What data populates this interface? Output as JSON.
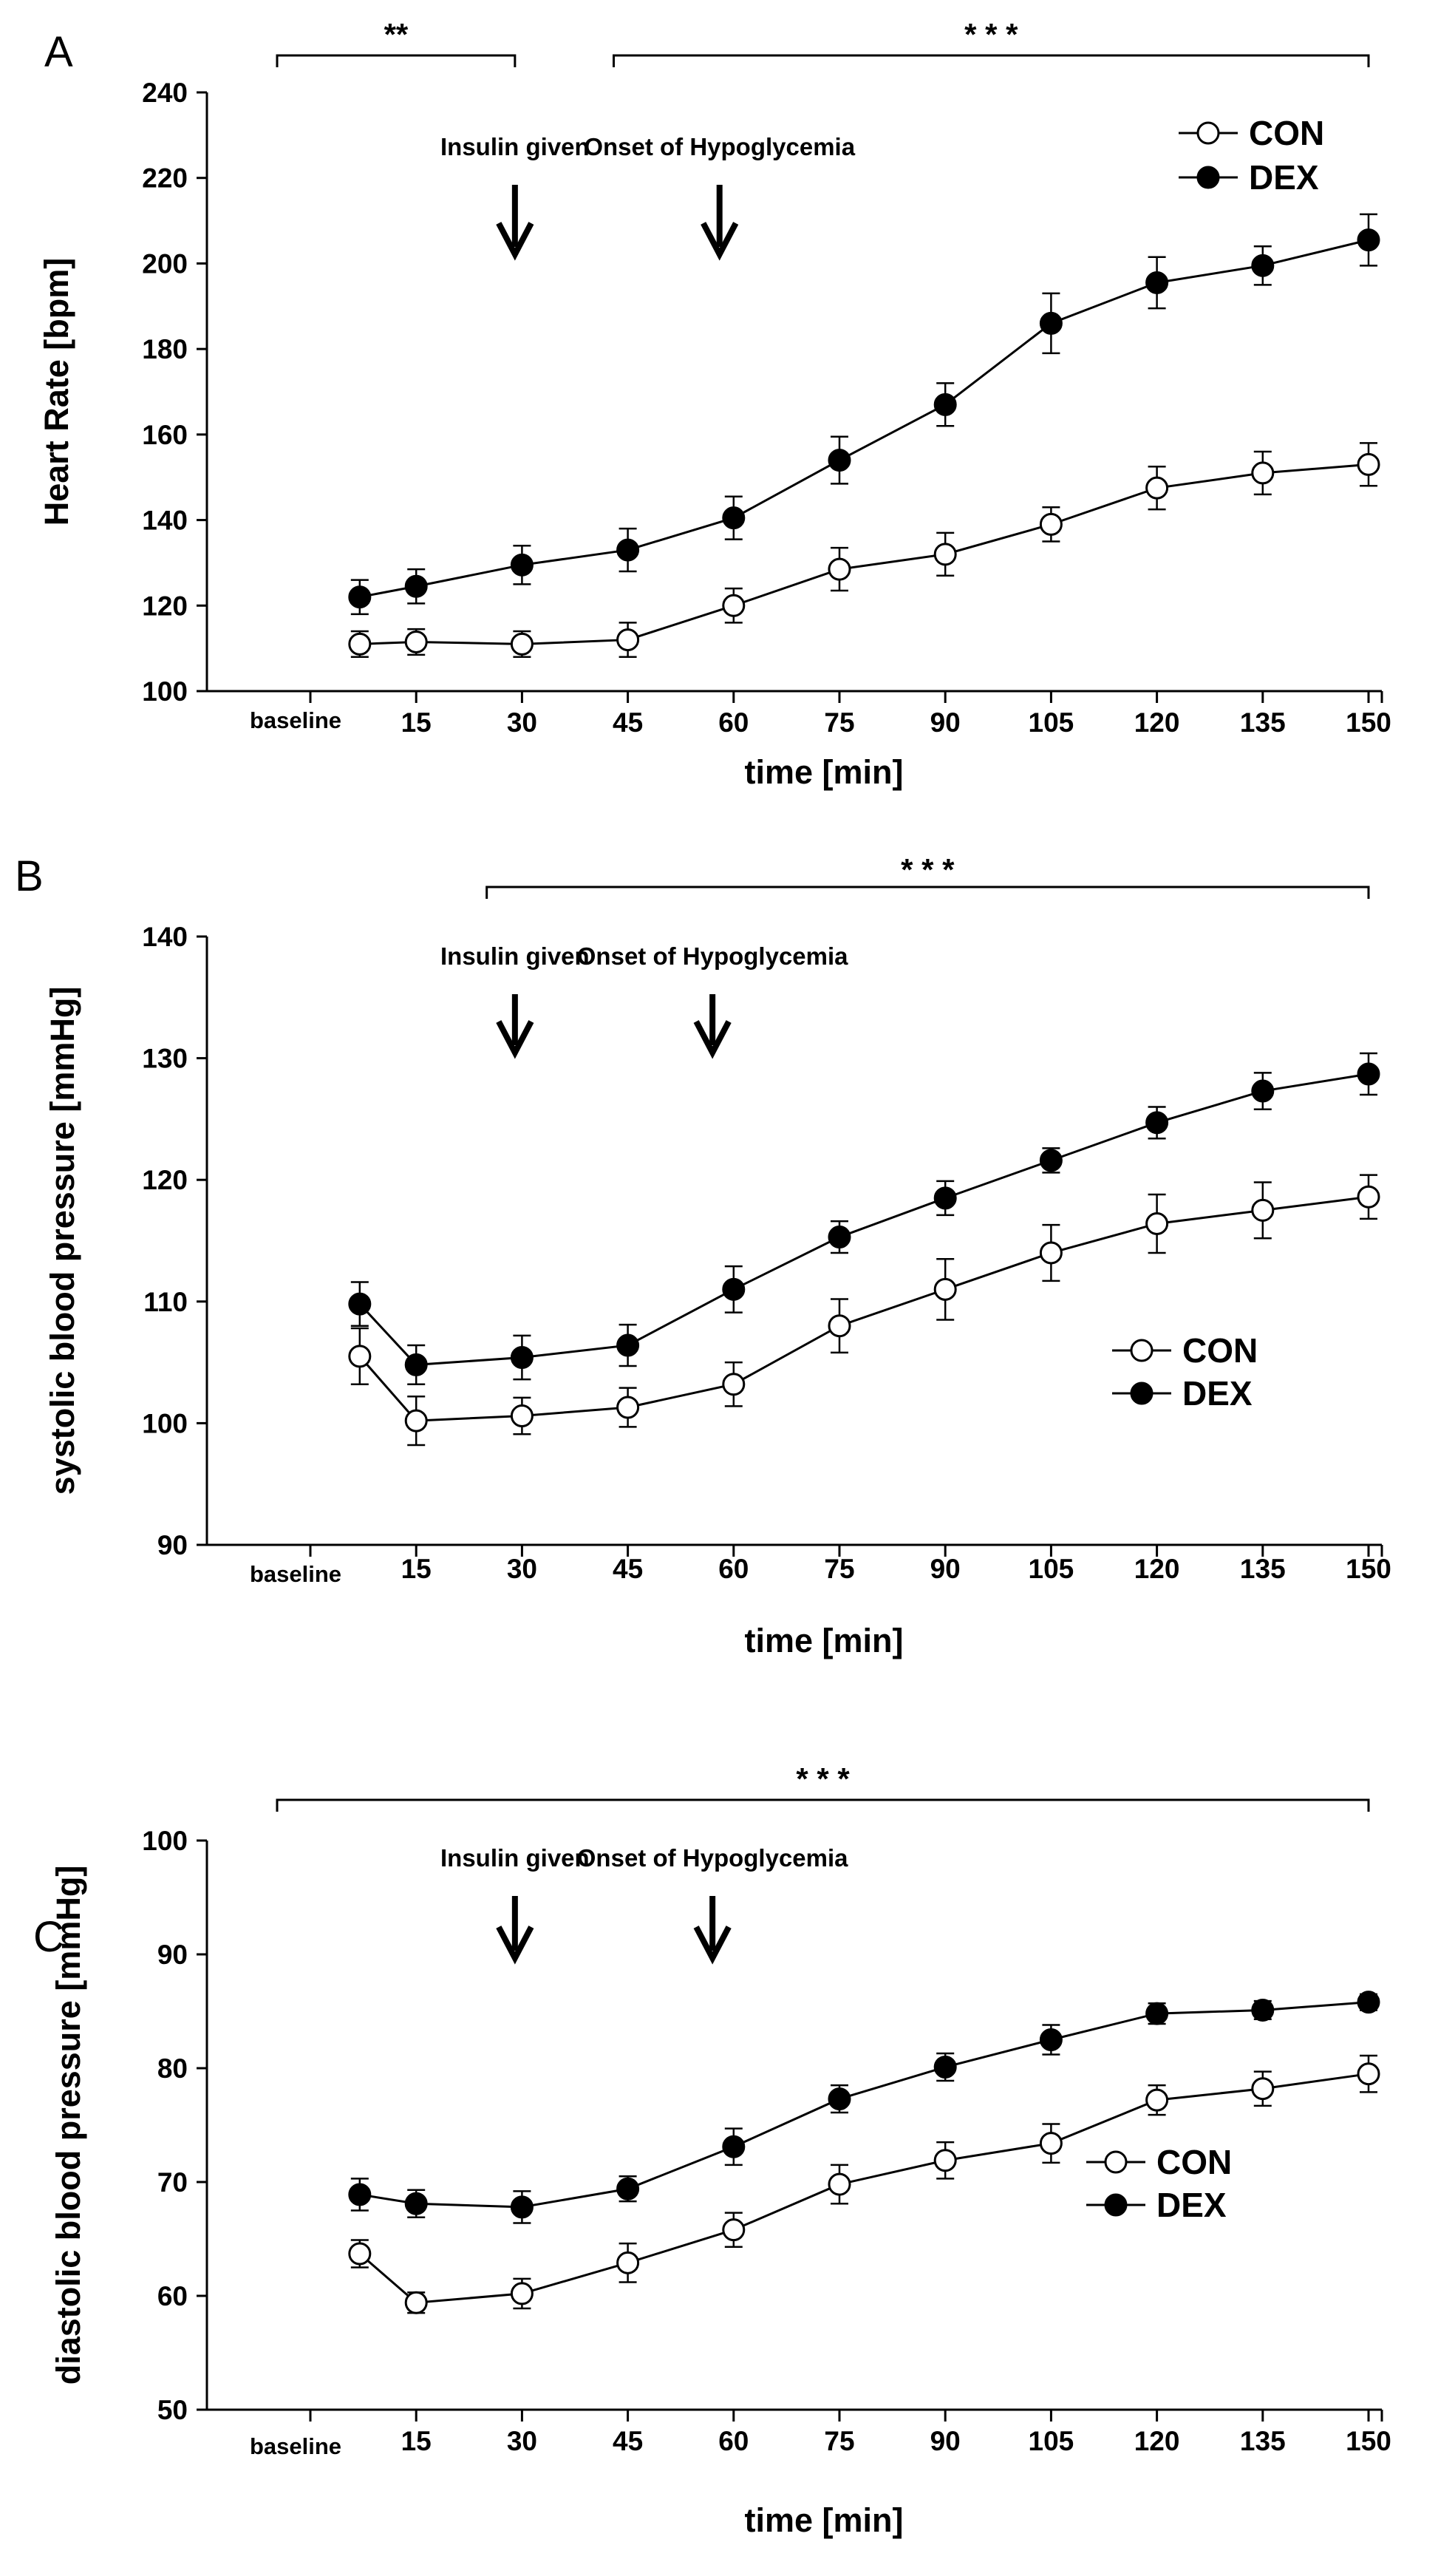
{
  "chart_data": [
    {
      "type": "line",
      "panel": "A",
      "xlabel": "time [min]",
      "ylabel": "Heart Rate [bpm]",
      "ylim": [
        100,
        240
      ],
      "yticks": [
        100,
        120,
        140,
        160,
        180,
        200,
        220,
        240
      ],
      "baseline_label": "baseline",
      "xticks": [
        "15",
        "30",
        "45",
        "60",
        "75",
        "90",
        "105",
        "120",
        "135",
        "150"
      ],
      "x": [
        7,
        15,
        30,
        45,
        60,
        75,
        90,
        105,
        120,
        135,
        150
      ],
      "series": [
        {
          "name": "CON",
          "marker": "open-circle",
          "values": [
            111,
            111.5,
            111,
            112,
            120,
            128.5,
            132,
            139,
            147.5,
            151,
            153
          ],
          "errors": [
            3,
            3,
            3,
            4,
            4,
            5,
            5,
            4,
            5,
            5,
            5
          ]
        },
        {
          "name": "DEX",
          "marker": "filled-circle",
          "values": [
            122,
            124.5,
            129.5,
            133,
            140.5,
            154,
            167,
            186,
            195.5,
            199.5,
            205.5
          ],
          "errors": [
            4,
            4,
            4.5,
            5,
            5,
            5.5,
            5,
            7,
            6,
            4.5,
            6
          ]
        }
      ],
      "legend_position": "top-right",
      "annotations": [
        {
          "text": "Insulin given",
          "x": 29
        },
        {
          "text": "Onset of Hypoglycemia",
          "x": 58
        }
      ],
      "significance": [
        {
          "label": "**",
          "from": 0,
          "to": 29
        },
        {
          "label": "* * *",
          "from": 43,
          "to": 150
        }
      ]
    },
    {
      "type": "line",
      "panel": "B",
      "xlabel": "time [min]",
      "ylabel": "systolic blood pressure  [mmHg]",
      "ylim": [
        90,
        140
      ],
      "yticks": [
        90,
        100,
        110,
        120,
        130,
        140
      ],
      "baseline_label": "baseline",
      "xticks": [
        "15",
        "30",
        "45",
        "60",
        "75",
        "90",
        "105",
        "120",
        "135",
        "150"
      ],
      "x": [
        7,
        15,
        30,
        45,
        60,
        75,
        90,
        105,
        120,
        135,
        150
      ],
      "series": [
        {
          "name": "CON",
          "marker": "open-circle",
          "values": [
            105.5,
            100.2,
            100.6,
            101.3,
            103.2,
            108,
            111,
            114,
            116.4,
            117.5,
            118.6
          ],
          "errors": [
            2.3,
            2,
            1.5,
            1.6,
            1.8,
            2.2,
            2.5,
            2.3,
            2.4,
            2.3,
            1.8
          ]
        },
        {
          "name": "DEX",
          "marker": "filled-circle",
          "values": [
            109.8,
            104.8,
            105.4,
            106.4,
            111,
            115.3,
            118.5,
            121.6,
            124.7,
            127.3,
            128.7
          ],
          "errors": [
            1.8,
            1.6,
            1.8,
            1.7,
            1.9,
            1.3,
            1.4,
            1,
            1.3,
            1.5,
            1.7
          ]
        }
      ],
      "legend_position": "center-right",
      "annotations": [
        {
          "text": "Insulin given",
          "x": 29
        },
        {
          "text": "Onset of Hypoglycemia",
          "x": 57
        }
      ],
      "significance": [
        {
          "label": "* * *",
          "from": 25,
          "to": 150
        }
      ]
    },
    {
      "type": "line",
      "panel": "C",
      "xlabel": "time [min]",
      "ylabel": "diastolic blood pressure  [mmHg]",
      "ylim": [
        50,
        100
      ],
      "yticks": [
        50,
        60,
        70,
        80,
        90,
        100
      ],
      "baseline_label": "baseline",
      "xticks": [
        "15",
        "30",
        "45",
        "60",
        "75",
        "90",
        "105",
        "120",
        "135",
        "150"
      ],
      "x": [
        7,
        15,
        30,
        45,
        60,
        75,
        90,
        105,
        120,
        135,
        150
      ],
      "series": [
        {
          "name": "CON",
          "marker": "open-circle",
          "values": [
            63.7,
            59.4,
            60.2,
            62.9,
            65.8,
            69.8,
            71.9,
            73.4,
            77.2,
            78.2,
            79.5
          ],
          "errors": [
            1.2,
            0.9,
            1.3,
            1.7,
            1.5,
            1.7,
            1.6,
            1.7,
            1.3,
            1.5,
            1.6
          ]
        },
        {
          "name": "DEX",
          "marker": "filled-circle",
          "values": [
            68.9,
            68.1,
            67.8,
            69.4,
            73.1,
            77.3,
            80.1,
            82.5,
            84.8,
            85.1,
            85.8
          ],
          "errors": [
            1.4,
            1.2,
            1.4,
            1.1,
            1.6,
            1.2,
            1.2,
            1.3,
            0.9,
            0.8,
            0.7
          ]
        }
      ],
      "legend_position": "center-right",
      "annotations": [
        {
          "text": "Insulin given",
          "x": 29
        },
        {
          "text": "Onset of Hypoglycemia",
          "x": 57
        }
      ],
      "significance": [
        {
          "label": "* * *",
          "from": 0,
          "to": 150
        }
      ]
    }
  ]
}
